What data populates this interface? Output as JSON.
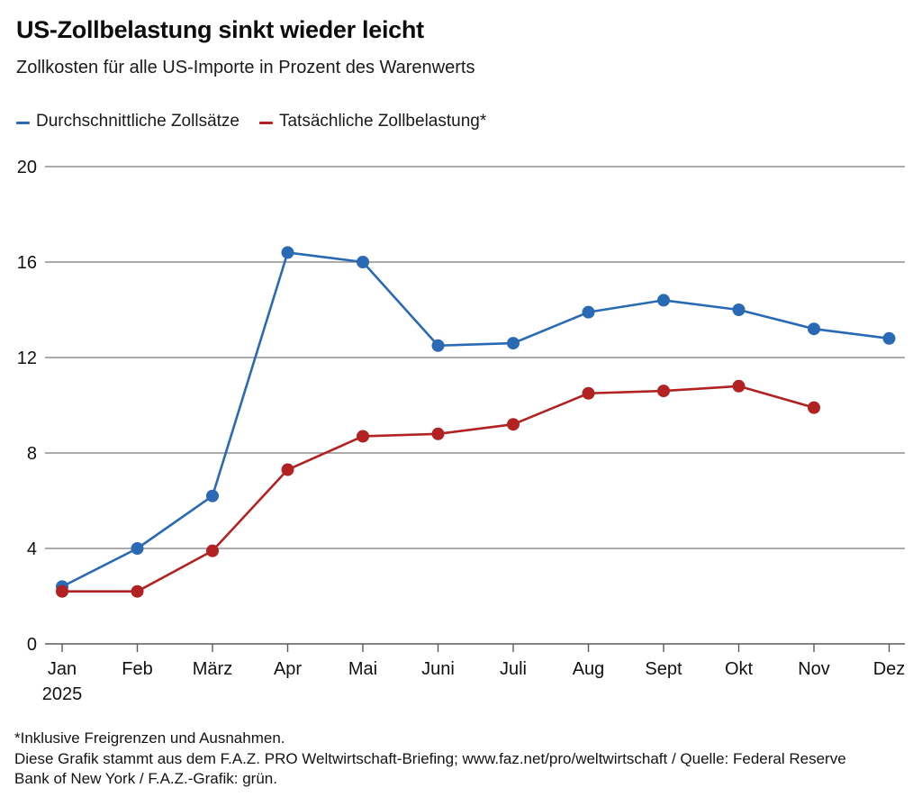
{
  "header": {
    "title": "US-Zollbelastung sinkt wieder leicht",
    "subtitle": "Zollkosten für alle US-Importe in Prozent des Warenwerts"
  },
  "legend": {
    "items": [
      {
        "label": "Durchschnittliche Zollsätze",
        "color": "#2a6ab4"
      },
      {
        "label": "Tatsächliche Zollbelastung*",
        "color": "#b22222"
      }
    ]
  },
  "chart_data": {
    "type": "line",
    "title": "US-Zollbelastung sinkt wieder leicht",
    "subtitle": "Zollkosten für alle US-Importe in Prozent des Warenwerts",
    "categories": [
      "Jan",
      "Feb",
      "März",
      "Apr",
      "Mai",
      "Juni",
      "Juli",
      "Aug",
      "Sept",
      "Okt",
      "Nov",
      "Dez"
    ],
    "x_year_label": "2025",
    "ylim": [
      0,
      20
    ],
    "yticks": [
      0,
      4,
      8,
      12,
      16,
      20
    ],
    "grid": "horizontal",
    "legend_position": "top",
    "series": [
      {
        "name": "Durchschnittliche Zollsätze",
        "color": "#2a6ab4",
        "values": [
          2.4,
          4.0,
          6.2,
          16.4,
          16.0,
          12.5,
          12.6,
          13.9,
          14.4,
          14.0,
          13.2,
          12.8
        ]
      },
      {
        "name": "Tatsächliche Zollbelastung*",
        "color": "#b22222",
        "values": [
          2.2,
          2.2,
          3.9,
          7.3,
          8.7,
          8.8,
          9.2,
          10.5,
          10.6,
          10.8,
          9.9,
          null
        ]
      }
    ]
  },
  "footer": {
    "lines": [
      "*Inklusive Freigrenzen und Ausnahmen.",
      "Diese Grafik stammt aus dem F.A.Z. PRO Weltwirtschaft-Briefing; www.faz.net/pro/weltwirtschaft / Quelle: Federal Reserve",
      "Bank of New York / F.A.Z.-Grafik: grün."
    ]
  }
}
